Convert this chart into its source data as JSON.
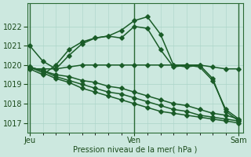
{
  "xlabel": "Pression niveau de la mer( hPa )",
  "xtick_labels": [
    "Jeu",
    "Ven",
    "Sam"
  ],
  "xtick_positions": [
    0,
    24,
    48
  ],
  "ylim": [
    1016.5,
    1023.2
  ],
  "xlim": [
    -0.5,
    49
  ],
  "yticks": [
    1017,
    1018,
    1019,
    1020,
    1021,
    1022
  ],
  "bg_color": "#cce8df",
  "grid_color": "#aad4c8",
  "line_color": "#1a5c28",
  "lines": [
    {
      "x": [
        0,
        3,
        6,
        9,
        12,
        15,
        18,
        21,
        24,
        27,
        30,
        33,
        36,
        39,
        42,
        45,
        48
      ],
      "y": [
        1021.0,
        1020.2,
        1019.8,
        1020.5,
        1021.1,
        1021.4,
        1021.5,
        1021.8,
        1022.3,
        1022.5,
        1021.6,
        1020.0,
        1019.9,
        1020.0,
        1019.3,
        1017.6,
        1017.1
      ]
    },
    {
      "x": [
        0,
        3,
        6,
        9,
        12,
        15,
        18,
        21,
        24,
        27,
        30,
        33,
        36,
        39,
        42,
        45,
        48
      ],
      "y": [
        1019.8,
        1019.5,
        1020.0,
        1020.8,
        1021.2,
        1021.4,
        1021.5,
        1021.4,
        1022.0,
        1021.9,
        1020.8,
        1019.9,
        1020.0,
        1019.9,
        1019.2,
        1017.7,
        1017.2
      ]
    },
    {
      "x": [
        0,
        3,
        6,
        9,
        12,
        15,
        18,
        21,
        24,
        27,
        30,
        33,
        36,
        39,
        42,
        45,
        48
      ],
      "y": [
        1019.8,
        1019.8,
        1019.8,
        1019.9,
        1020.0,
        1020.0,
        1020.0,
        1020.0,
        1020.0,
        1020.0,
        1020.0,
        1020.0,
        1020.0,
        1020.0,
        1019.9,
        1019.8,
        1019.8
      ]
    },
    {
      "x": [
        0,
        3,
        6,
        9,
        12,
        15,
        18,
        21,
        24,
        27,
        30,
        33,
        36,
        39,
        42,
        45,
        48
      ],
      "y": [
        1019.9,
        1019.7,
        1019.5,
        1019.4,
        1019.2,
        1019.1,
        1018.9,
        1018.8,
        1018.6,
        1018.4,
        1018.2,
        1018.0,
        1017.9,
        1017.7,
        1017.5,
        1017.4,
        1017.2
      ]
    },
    {
      "x": [
        0,
        3,
        6,
        9,
        12,
        15,
        18,
        21,
        24,
        27,
        30,
        33,
        36,
        39,
        42,
        45,
        48
      ],
      "y": [
        1019.9,
        1019.7,
        1019.4,
        1019.2,
        1019.0,
        1018.8,
        1018.6,
        1018.5,
        1018.3,
        1018.1,
        1017.9,
        1017.7,
        1017.6,
        1017.4,
        1017.3,
        1017.2,
        1017.1
      ]
    },
    {
      "x": [
        0,
        3,
        6,
        9,
        12,
        15,
        18,
        21,
        24,
        27,
        30,
        33,
        36,
        39,
        42,
        45,
        48
      ],
      "y": [
        1019.9,
        1019.6,
        1019.3,
        1019.1,
        1018.8,
        1018.6,
        1018.4,
        1018.2,
        1018.0,
        1017.8,
        1017.6,
        1017.5,
        1017.4,
        1017.3,
        1017.2,
        1017.1,
        1017.0
      ]
    }
  ],
  "marker": "D",
  "markersize": 2.8,
  "linewidth": 1.1
}
